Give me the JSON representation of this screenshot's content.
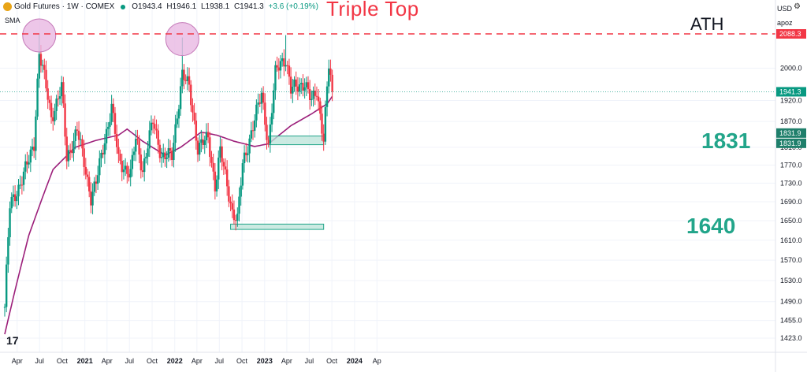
{
  "header": {
    "instrument": "Gold Futures · 1W · COMEX",
    "open": "O1943.4",
    "high": "H1946.1",
    "low": "L1938.1",
    "close": "C1941.3",
    "change": "+3.6 (+0.19%)",
    "indicator": "SMA"
  },
  "annotations": {
    "title": "Triple Top",
    "ath": "ATH",
    "support_high": "1831",
    "support_low": "1640"
  },
  "price_axis": {
    "currency": "USD",
    "mode": "apoz",
    "ticks": [
      "2000.0",
      "1920.0",
      "1870.0",
      "1810.0",
      "1770.0",
      "1730.0",
      "1690.0",
      "1650.0",
      "1610.0",
      "1570.0",
      "1530.0",
      "1490.0",
      "1455.0",
      "1423.0"
    ],
    "badges": {
      "ath_price": "2088.3",
      "last_price": "1941.3",
      "support_a": "1831.9",
      "support_b": "1831.9"
    }
  },
  "time_axis": {
    "ticks": [
      "Apr",
      "Jul",
      "Oct",
      "2021",
      "Apr",
      "Jul",
      "Oct",
      "2022",
      "Apr",
      "Jul",
      "Oct",
      "2023",
      "Apr",
      "Jul",
      "Oct",
      "2024",
      "Ap"
    ]
  },
  "colors": {
    "up": "#089981",
    "down": "#f23645",
    "sma": "#9c1f7a",
    "zone_fill": "#b9e3d8",
    "zone_stroke": "#22a58a",
    "top_marker": "#e9b8e2"
  },
  "chart_data": {
    "type": "candlestick",
    "title": "Gold Futures · 1W · COMEX",
    "indicator": "SMA",
    "ath_level": 2088.3,
    "last_close": 1941.3,
    "triple_top_points": [
      {
        "x": "2020-08-07",
        "y": 2088.3
      },
      {
        "x": "2022-03-11",
        "y": 2078.8
      }
    ],
    "support_zones": [
      {
        "label": "1831",
        "from": "2023-02-24",
        "to": "2023-10-06",
        "low": 1816,
        "high": 1836
      },
      {
        "label": "1640",
        "from": "2022-09-23",
        "to": "2023-10-06",
        "low": 1632,
        "high": 1643
      }
    ],
    "anchors": [
      [
        "2020-03-20",
        1480
      ],
      [
        "2020-04-10",
        1680
      ],
      [
        "2020-05-22",
        1730
      ],
      [
        "2020-06-26",
        1780
      ],
      [
        "2020-07-17",
        1820
      ],
      [
        "2020-08-07",
        2040
      ],
      [
        "2020-08-28",
        1975
      ],
      [
        "2020-09-25",
        1880
      ],
      [
        "2020-11-06",
        1950
      ],
      [
        "2020-11-27",
        1785
      ],
      [
        "2021-01-08",
        1850
      ],
      [
        "2021-03-05",
        1700
      ],
      [
        "2021-03-26",
        1730
      ],
      [
        "2021-05-28",
        1905
      ],
      [
        "2021-06-25",
        1780
      ],
      [
        "2021-08-13",
        1750
      ],
      [
        "2021-09-03",
        1830
      ],
      [
        "2021-10-01",
        1760
      ],
      [
        "2021-11-12",
        1870
      ],
      [
        "2021-12-17",
        1790
      ],
      [
        "2022-01-28",
        1790
      ],
      [
        "2022-03-11",
        1985
      ],
      [
        "2022-04-08",
        1950
      ],
      [
        "2022-05-13",
        1810
      ],
      [
        "2022-06-24",
        1830
      ],
      [
        "2022-07-22",
        1725
      ],
      [
        "2022-08-12",
        1800
      ],
      [
        "2022-09-30",
        1670
      ],
      [
        "2022-10-21",
        1650
      ],
      [
        "2022-11-11",
        1770
      ],
      [
        "2023-01-27",
        1935
      ],
      [
        "2023-02-24",
        1815
      ],
      [
        "2023-03-24",
        1985
      ],
      [
        "2023-04-14",
        2015
      ],
      [
        "2023-05-05",
        2025
      ],
      [
        "2023-05-26",
        1945
      ],
      [
        "2023-07-21",
        1965
      ],
      [
        "2023-08-18",
        1915
      ],
      [
        "2023-09-08",
        1945
      ],
      [
        "2023-10-06",
        1830
      ],
      [
        "2023-10-27",
        2005
      ],
      [
        "2023-11-10",
        1941.3
      ]
    ],
    "sma_anchors": [
      [
        "2020-03-20",
        1430
      ],
      [
        "2020-06-26",
        1620
      ],
      [
        "2020-10-02",
        1760
      ],
      [
        "2020-12-31",
        1810
      ],
      [
        "2021-03-26",
        1826
      ],
      [
        "2021-06-25",
        1838
      ],
      [
        "2021-07-30",
        1852
      ],
      [
        "2021-10-01",
        1824
      ],
      [
        "2021-12-31",
        1792
      ],
      [
        "2022-03-04",
        1810
      ],
      [
        "2022-05-27",
        1845
      ],
      [
        "2022-07-29",
        1838
      ],
      [
        "2022-10-07",
        1824
      ],
      [
        "2022-12-30",
        1812
      ],
      [
        "2023-02-24",
        1818
      ],
      [
        "2023-05-26",
        1860
      ],
      [
        "2023-08-18",
        1888
      ],
      [
        "2023-10-20",
        1912
      ],
      [
        "2023-11-10",
        1930
      ]
    ]
  }
}
